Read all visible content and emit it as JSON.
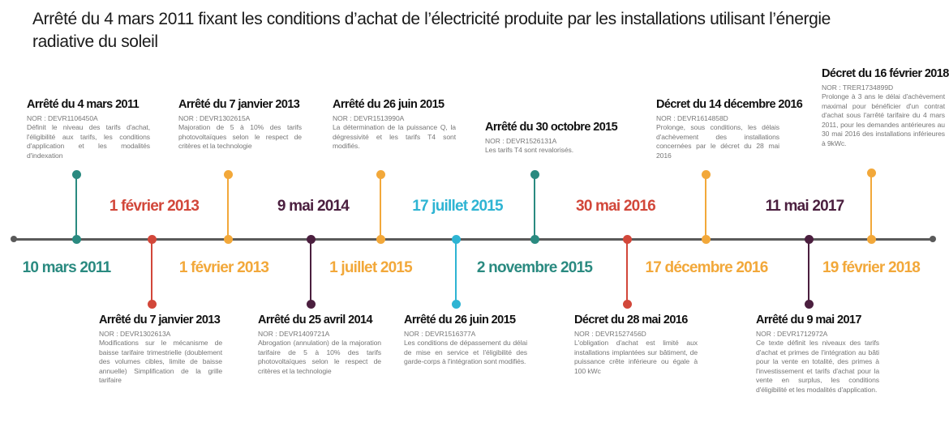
{
  "title": "Arrêté du 4 mars 2011 fixant les conditions d’achat de l’électricité produite par les installations utilisant l’énergie radiative du soleil",
  "colors": {
    "teal": "#2a8a80",
    "red": "#d2473a",
    "yellow": "#f2a83a",
    "purple": "#4b1f3f",
    "cyan": "#2eb4d3",
    "axis": "#5a5a5a"
  },
  "events": [
    {
      "color": "teal",
      "label": "10 mars 2011",
      "card": {
        "title": "Arrêté du 4 mars 2011",
        "nor": "NOR : DEVR1106450A",
        "text": "Définit le niveau des tarifs d'achat, l'éligibilité aux tarifs, les conditions d'application et les modalités d'indexation"
      }
    },
    {
      "color": "red",
      "label": "1 février 2013",
      "card": {
        "title": "Arrêté du 7 janvier 2013",
        "nor": "NOR : DEVR1302613A",
        "text": "Modifications sur le mécanisme de baisse tarifaire trimestrielle (doublement des volumes cibles, limite de baisse annuelle) Simplification de la grille tarifaire"
      }
    },
    {
      "color": "yellow",
      "label": "1 février 2013",
      "card": {
        "title": "Arrêté du 7 janvier 2013",
        "nor": "NOR : DEVR1302615A",
        "text": "Majoration de 5 à 10% des tarifs photovoltaïques selon le respect de critères et la technologie"
      }
    },
    {
      "color": "purple",
      "label": "9 mai 2014",
      "card": {
        "title": "Arrêté du 25 avril 2014",
        "nor": "NOR : DEVR1409721A",
        "text": "Abrogation (annulation) de la majoration tarifaire de 5 à 10% des tarifs photovoltaïques selon le respect de critères et la technologie"
      }
    },
    {
      "color": "yellow",
      "label": "1 juillet 2015",
      "card": {
        "title": "Arrêté du 26 juin 2015",
        "nor": "NOR : DEVR1513990A",
        "text": "La détermination de la puissance Q, la dégressivité et les tarifs T4 sont modifiés."
      }
    },
    {
      "color": "cyan",
      "label": "17 juillet 2015",
      "card": {
        "title": "Arrêté du 26 juin 2015",
        "nor": "NOR : DEVR1516377A",
        "text": "Les conditions de dépassement du délai de mise en service et l'éligibilité des garde-corps à l'intégration sont modifiés."
      }
    },
    {
      "color": "teal",
      "label": "2 novembre 2015",
      "card": {
        "title": "Arrêté du 30 octobre 2015",
        "nor": "NOR : DEVR1526131A",
        "text": "Les tarifs T4 sont revalorisés."
      }
    },
    {
      "color": "red",
      "label": "30 mai 2016",
      "card": {
        "title": "Décret du 28 mai 2016",
        "nor": "NOR : DEVR1527456D",
        "text": "L'obligation d'achat est limité aux installations implantées sur bâtiment, de puissance crête inférieure ou égale à 100 kWc"
      }
    },
    {
      "color": "yellow",
      "label": "17 décembre 2016",
      "card": {
        "title": "Décret du 14 décembre 2016",
        "nor": "NOR : DEVR1614858D",
        "text": "Prolonge, sous conditions, les délais d'achèvement des installations concernées par le décret du 28 mai 2016"
      }
    },
    {
      "color": "purple",
      "label": "11 mai 2017",
      "card": {
        "title": "Arrêté du 9 mai 2017",
        "nor": "NOR : DEVR1712972A",
        "text": "Ce texte définit les niveaux des tarifs d'achat et primes de l'intégration au bâti pour la vente en totalité, des primes à l'investissement et tarifs d'achat pour la vente en surplus, les conditions d'éligibilité et les modalités d'application."
      }
    },
    {
      "color": "yellow",
      "label": "19 février 2018",
      "card": {
        "title": "Décret du 16 février 2018",
        "nor": "NOR : TRER1734899D",
        "text": "Prolonge à 3 ans le délai d'achèvement maximal pour bénéficier d'un contrat d'achat sous l'arrêté tarifaire du 4 mars 2011, pour les demandes antérieures au 30 mai 2016 des installations inférieures à 9kWc."
      }
    }
  ]
}
